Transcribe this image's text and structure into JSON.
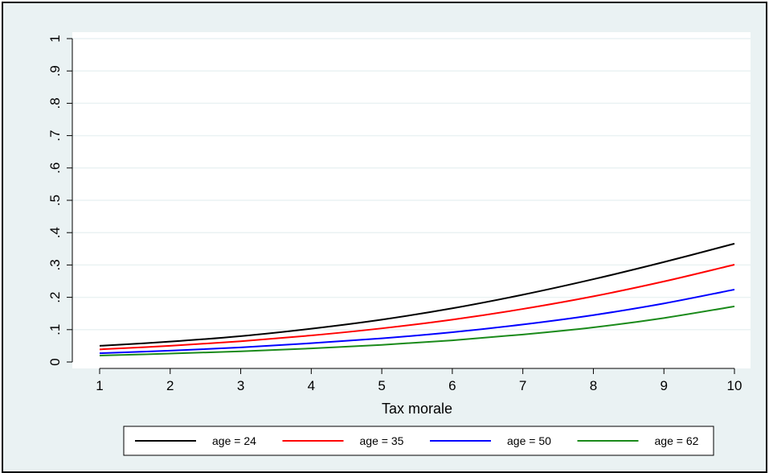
{
  "chart_data": {
    "type": "line",
    "title": "",
    "xlabel": "Tax morale",
    "ylabel": "",
    "x": [
      1,
      2,
      3,
      4,
      5,
      6,
      7,
      8,
      9,
      10
    ],
    "xlim": [
      1,
      10
    ],
    "ylim": [
      0,
      1
    ],
    "x_ticks": [
      "1",
      "2",
      "3",
      "4",
      "5",
      "6",
      "7",
      "8",
      "9",
      "10"
    ],
    "y_ticks": [
      {
        "value": 0,
        "label": "0"
      },
      {
        "value": 0.1,
        "label": ".1"
      },
      {
        "value": 0.2,
        "label": ".2"
      },
      {
        "value": 0.3,
        "label": ".3"
      },
      {
        "value": 0.4,
        "label": ".4"
      },
      {
        "value": 0.5,
        "label": ".5"
      },
      {
        "value": 0.6,
        "label": ".6"
      },
      {
        "value": 0.7,
        "label": ".7"
      },
      {
        "value": 0.8,
        "label": ".8"
      },
      {
        "value": 0.9,
        "label": ".9"
      },
      {
        "value": 1,
        "label": "1"
      }
    ],
    "grid": true,
    "legend_position": "bottom",
    "series": [
      {
        "name": "age = 24",
        "color": "#000000",
        "values": [
          0.05,
          0.063,
          0.08,
          0.103,
          0.131,
          0.166,
          0.208,
          0.256,
          0.309,
          0.366
        ]
      },
      {
        "name": "age = 35",
        "color": "#ff0000",
        "values": [
          0.039,
          0.05,
          0.064,
          0.082,
          0.104,
          0.131,
          0.164,
          0.203,
          0.249,
          0.301
        ]
      },
      {
        "name": "age = 50",
        "color": "#0000ff",
        "values": [
          0.027,
          0.035,
          0.045,
          0.058,
          0.073,
          0.092,
          0.116,
          0.145,
          0.181,
          0.224
        ]
      },
      {
        "name": "age = 62",
        "color": "#1a8a1a",
        "values": [
          0.02,
          0.026,
          0.033,
          0.042,
          0.053,
          0.067,
          0.085,
          0.107,
          0.136,
          0.172
        ]
      }
    ]
  },
  "colors": {
    "frame_background": "#eaf2f3",
    "plot_background": "#ffffff",
    "grid": "#eaf2f3"
  }
}
